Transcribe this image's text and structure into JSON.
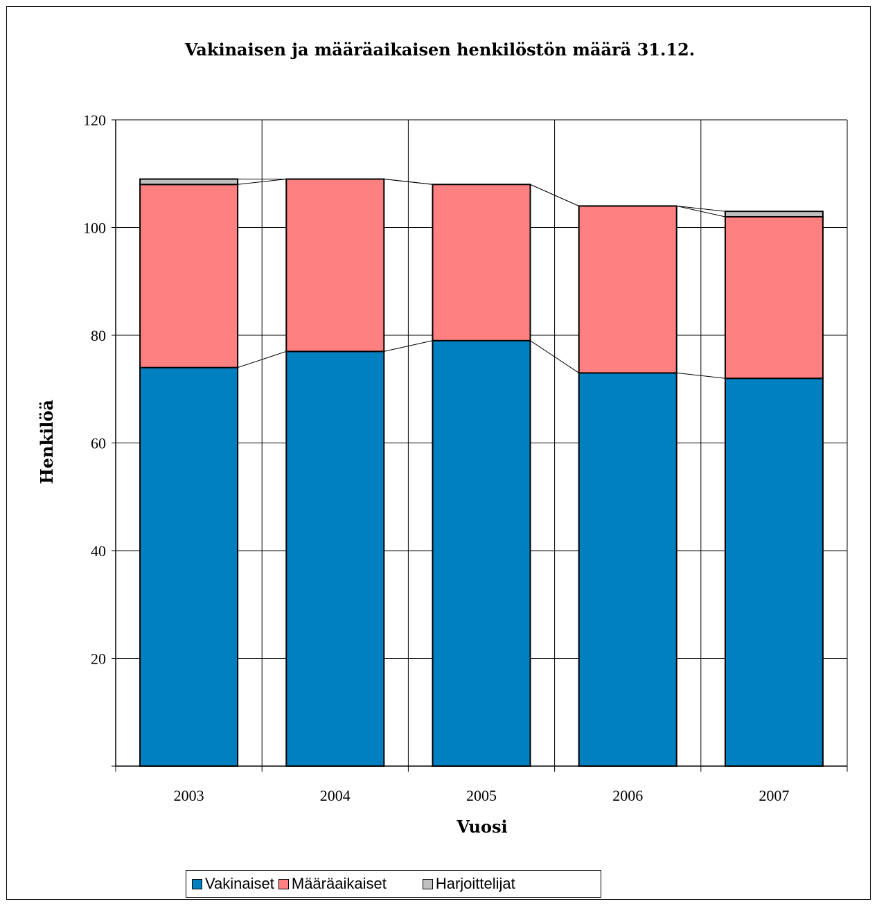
{
  "chart_data": {
    "type": "bar",
    "stacked": true,
    "title": "Vakinaisen ja määräaikaisen henkilöstön määrä 31.12.",
    "xlabel": "Vuosi",
    "ylabel": "Henkilöä",
    "categories": [
      "2003",
      "2004",
      "2005",
      "2006",
      "2007"
    ],
    "ylim": [
      0,
      120
    ],
    "yticks": [
      "20",
      "40",
      "60",
      "80",
      "100",
      "120"
    ],
    "grid": true,
    "series_lines": true,
    "legend_position": "bottom",
    "series": [
      {
        "name": "Vakinaiset",
        "values": [
          74,
          77,
          79,
          73,
          72
        ],
        "color": "#0080C0"
      },
      {
        "name": "Määräaikaiset",
        "values": [
          34,
          32,
          29,
          31,
          30
        ],
        "color": "#FF8080"
      },
      {
        "name": "Harjoittelijat",
        "values": [
          1,
          0,
          0,
          0,
          1
        ],
        "color": "#C0C0C0"
      }
    ]
  }
}
